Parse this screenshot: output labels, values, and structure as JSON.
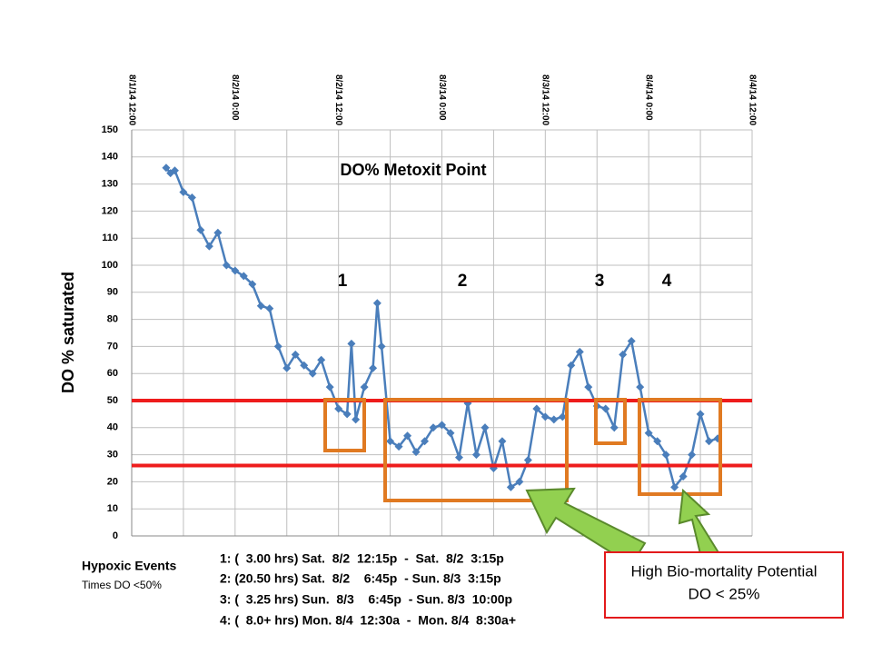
{
  "chart_data": {
    "type": "line",
    "title": "DO% Metoxit Point",
    "y_label": "DO % saturated",
    "xlim": [
      "8/1/14 12:00",
      "8/4/14 12:00"
    ],
    "xticks": [
      "8/1/14 12:00",
      "8/2/14 0:00",
      "8/2/14 12:00",
      "8/3/14 0:00",
      "8/3/14 12:00",
      "8/4/14 0:00",
      "8/4/14 12:00"
    ],
    "ylim": [
      0,
      150
    ],
    "yticks": [
      0,
      10,
      20,
      30,
      40,
      50,
      60,
      70,
      80,
      90,
      100,
      110,
      120,
      130,
      140,
      150
    ],
    "grid": true,
    "reference_lines": [
      {
        "value": 50,
        "color": "#ee1c1c"
      },
      {
        "value": 26,
        "color": "#ee1c1c"
      }
    ],
    "x": [
      "8/1/14 16:00",
      "8/1/14 16:30",
      "8/1/14 17:00",
      "8/1/14 18:00",
      "8/1/14 19:00",
      "8/1/14 20:00",
      "8/1/14 21:00",
      "8/1/14 22:00",
      "8/1/14 23:00",
      "8/2/14 0:00",
      "8/2/14 1:00",
      "8/2/14 2:00",
      "8/2/14 3:00",
      "8/2/14 4:00",
      "8/2/14 5:00",
      "8/2/14 6:00",
      "8/2/14 7:00",
      "8/2/14 8:00",
      "8/2/14 9:00",
      "8/2/14 10:00",
      "8/2/14 11:00",
      "8/2/14 12:00",
      "8/2/14 13:00",
      "8/2/14 13:30",
      "8/2/14 14:00",
      "8/2/14 15:00",
      "8/2/14 16:00",
      "8/2/14 16:30",
      "8/2/14 17:00",
      "8/2/14 18:00",
      "8/2/14 19:00",
      "8/2/14 20:00",
      "8/2/14 21:00",
      "8/2/14 22:00",
      "8/2/14 23:00",
      "8/3/14 0:00",
      "8/3/14 1:00",
      "8/3/14 2:00",
      "8/3/14 3:00",
      "8/3/14 4:00",
      "8/3/14 5:00",
      "8/3/14 6:00",
      "8/3/14 7:00",
      "8/3/14 8:00",
      "8/3/14 9:00",
      "8/3/14 10:00",
      "8/3/14 11:00",
      "8/3/14 12:00",
      "8/3/14 13:00",
      "8/3/14 14:00",
      "8/3/14 15:00",
      "8/3/14 16:00",
      "8/3/14 17:00",
      "8/3/14 18:00",
      "8/3/14 19:00",
      "8/3/14 20:00",
      "8/3/14 21:00",
      "8/3/14 22:00",
      "8/3/14 23:00",
      "8/4/14 0:00",
      "8/4/14 1:00",
      "8/4/14 2:00",
      "8/4/14 3:00",
      "8/4/14 4:00",
      "8/4/14 5:00",
      "8/4/14 6:00",
      "8/4/14 7:00",
      "8/4/14 8:00"
    ],
    "series": [
      {
        "name": "DO%",
        "color": "#4a7ebb",
        "values": [
          136,
          134,
          135,
          127,
          125,
          113,
          107,
          112,
          100,
          98,
          96,
          93,
          85,
          84,
          70,
          62,
          67,
          63,
          60,
          65,
          55,
          47,
          45,
          71,
          43,
          55,
          62,
          86,
          70,
          35,
          33,
          37,
          31,
          35,
          40,
          41,
          38,
          29,
          49,
          30,
          40,
          25,
          35,
          18,
          20,
          28,
          47,
          44,
          43,
          44,
          63,
          68,
          55,
          48,
          47,
          40,
          67,
          72,
          55,
          38,
          35,
          30,
          18,
          22,
          30,
          45,
          35,
          36
        ]
      }
    ]
  },
  "annotations": {
    "labels": [
      "1",
      "2",
      "3",
      "4"
    ]
  },
  "notes": {
    "heading": "Hypoxic Events",
    "subheading": "Times DO <50%",
    "events": [
      "1: (  3.00 hrs) Sat.  8/2  12:15p  -  Sat.  8/2  3:15p",
      "2: (20.50 hrs) Sat.  8/2    6:45p  - Sun. 8/3  3:15p",
      "3: (  3.25 hrs) Sun.  8/3    6:45p  - Sun. 8/3  10:00p",
      "4: (  8.0+ hrs) Mon. 8/4  12:30a  -  Mon. 8/4  8:30a+"
    ]
  },
  "callout": {
    "line1": "High Bio-mortality Potential",
    "line2": "DO < 25%"
  }
}
